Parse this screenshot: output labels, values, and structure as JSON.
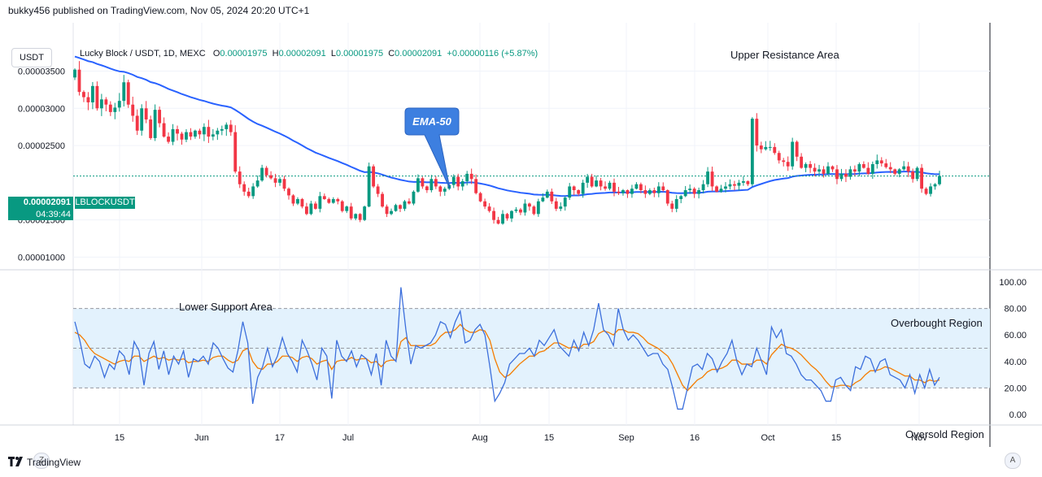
{
  "header": {
    "published_text": "bukky456 published on TradingView.com, Nov 05, 2024 20:20 UTC+1"
  },
  "toolbar": {
    "currency": "USDT",
    "scale_left_btn": "Z",
    "scale_right_btn": "A"
  },
  "legend": {
    "symbol": "Lucky Block / USDT, 1D, MEXC",
    "o_label": "O",
    "o_value": "0.00001975",
    "h_label": "H",
    "h_value": "0.00002091",
    "l_label": "L",
    "l_value": "0.00001975",
    "c_label": "C",
    "c_value": "0.00002091",
    "change": "+0.00000116 (+5.87%)"
  },
  "last_price": {
    "price": "0.00002091",
    "countdown": "04:39:44",
    "ticker": "LBLOCKUSDT"
  },
  "annotations": {
    "upper_resistance": "Upper Resistance Area",
    "lower_support": "Lower Support Area",
    "overbought": "Overbought Region",
    "oversold": "Oversold Region",
    "ema_callout": "EMA-50"
  },
  "footer": {
    "brand": "TradingView"
  },
  "colors": {
    "up": "#089981",
    "down": "#f23645",
    "ema": "#2962ff",
    "rsi": "#3c6fdc",
    "rsi_ma": "#f57c00",
    "band": "#e3f2fd",
    "callout": "#3d7fe0"
  },
  "chart_data": [
    {
      "type": "candlestick",
      "title": "Lucky Block / USDT, 1D, MEXC",
      "x_ticks": [
        "15",
        "Jun",
        "17",
        "Jul",
        "Aug",
        "15",
        "Sep",
        "16",
        "Oct",
        "15",
        "Nov"
      ],
      "y_ticks": [
        "0.00003500",
        "0.00003000",
        "0.00002500",
        "0.00001500",
        "0.00001000"
      ],
      "ylim": [
        8.3e-06,
        4.15e-05
      ],
      "ema_label": "EMA-50",
      "close": [
        3.52e-05,
        3.22e-05,
        3.15e-05,
        3.08e-05,
        3.3e-05,
        3e-05,
        3.12e-05,
        3.05e-05,
        2.95e-05,
        3.01e-05,
        3.1e-05,
        3.35e-05,
        3.05e-05,
        2.9e-05,
        2.7e-05,
        3e-05,
        2.85e-05,
        2.6e-05,
        2.98e-05,
        2.8e-05,
        2.62e-05,
        2.55e-05,
        2.72e-05,
        2.66e-05,
        2.58e-05,
        2.68e-05,
        2.62e-05,
        2.7e-05,
        2.65e-05,
        2.75e-05,
        2.62e-05,
        2.65e-05,
        2.7e-05,
        2.72e-05,
        2.78e-05,
        2.68e-05,
        2.15e-05,
        1.98e-05,
        1.88e-05,
        1.82e-05,
        1.95e-05,
        2.03e-05,
        2.2e-05,
        2.1e-05,
        2.06e-05,
        2e-05,
        2.05e-05,
        1.92e-05,
        1.83e-05,
        1.72e-05,
        1.78e-05,
        1.68e-05,
        1.58e-05,
        1.72e-05,
        1.65e-05,
        1.82e-05,
        1.78e-05,
        1.73e-05,
        1.78e-05,
        1.75e-05,
        1.62e-05,
        1.68e-05,
        1.52e-05,
        1.58e-05,
        1.5e-05,
        1.68e-05,
        2.22e-05,
        1.95e-05,
        1.85e-05,
        1.68e-05,
        1.58e-05,
        1.62e-05,
        1.7e-05,
        1.65e-05,
        1.75e-05,
        1.72e-05,
        1.88e-05,
        2.06e-05,
        1.95e-05,
        1.9e-05,
        2.05e-05,
        1.95e-05,
        1.88e-05,
        1.92e-05,
        1.97e-05,
        2.08e-05,
        1.95e-05,
        2.02e-05,
        2.12e-05,
        2.05e-05,
        1.86e-05,
        1.75e-05,
        1.68e-05,
        1.62e-05,
        1.5e-05,
        1.45e-05,
        1.58e-05,
        1.52e-05,
        1.62e-05,
        1.64e-05,
        1.6e-05,
        1.72e-05,
        1.68e-05,
        1.58e-05,
        1.75e-05,
        1.8e-05,
        1.88e-05,
        1.75e-05,
        1.65e-05,
        1.68e-05,
        1.8e-05,
        1.95e-05,
        1.9e-05,
        1.85e-05,
        2e-05,
        2.08e-05,
        1.95e-05,
        2.03e-05,
        1.95e-05,
        1.92e-05,
        2e-05,
        1.88e-05,
        1.86e-05,
        1.9e-05,
        1.85e-05,
        1.92e-05,
        1.98e-05,
        1.9e-05,
        1.85e-05,
        1.9e-05,
        1.86e-05,
        1.95e-05,
        1.9e-05,
        1.72e-05,
        1.65e-05,
        1.78e-05,
        1.82e-05,
        1.9e-05,
        1.92e-05,
        1.85e-05,
        1.9e-05,
        1.98e-05,
        2.15e-05,
        1.95e-05,
        1.88e-05,
        1.92e-05,
        1.95e-05,
        1.98e-05,
        1.96e-05,
        2e-05,
        2.02e-05,
        1.98e-05,
        2.86e-05,
        2.5e-05,
        2.45e-05,
        2.48e-05,
        2.48e-05,
        2.4e-05,
        2.3e-05,
        2.28e-05,
        2.22e-05,
        2.55e-05,
        2.35e-05,
        2.2e-05,
        2.25e-05,
        2.2e-05,
        2.15e-05,
        2.18e-05,
        2.12e-05,
        2.22e-05,
        2.18e-05,
        2.05e-05,
        2.12e-05,
        2.08e-05,
        2.18e-05,
        2.15e-05,
        2.25e-05,
        2.2e-05,
        2.12e-05,
        2.25e-05,
        2.3e-05,
        2.26e-05,
        2.21e-05,
        2.18e-05,
        2.12e-05,
        2.18e-05,
        2.22e-05,
        2.15e-05,
        2.05e-05,
        2.2e-05,
        1.92e-05,
        1.85e-05,
        1.95e-05,
        1.98e-05,
        2.09e-05
      ]
    },
    {
      "type": "line",
      "title": "RSI",
      "y_ticks": [
        "100.00",
        "80.00",
        "60.00",
        "40.00",
        "20.00",
        "0.00"
      ],
      "ylim": [
        -8,
        108
      ],
      "band": [
        20,
        80
      ],
      "midline": 50,
      "series": [
        {
          "values": [
            70,
            56,
            38,
            35,
            44,
            40,
            28,
            38,
            34,
            48,
            44,
            30,
            55,
            48,
            22,
            46,
            55,
            34,
            48,
            30,
            44,
            38,
            48,
            28,
            42,
            40,
            44,
            38,
            54,
            50,
            42,
            35,
            32,
            48,
            70,
            54,
            8,
            28,
            36,
            50,
            36,
            44,
            58,
            46,
            40,
            32,
            56,
            48,
            38,
            26,
            50,
            44,
            12,
            56,
            44,
            40,
            48,
            36,
            45,
            42,
            30,
            46,
            22,
            56,
            44,
            40,
            96,
            64,
            38,
            52,
            50,
            52,
            54,
            60,
            70,
            68,
            58,
            70,
            78,
            54,
            56,
            64,
            68,
            60,
            36,
            10,
            16,
            24,
            38,
            42,
            46,
            46,
            50,
            44,
            56,
            52,
            58,
            64,
            52,
            48,
            44,
            56,
            48,
            62,
            52,
            64,
            84,
            64,
            60,
            52,
            80,
            64,
            56,
            60,
            56,
            50,
            44,
            46,
            46,
            38,
            34,
            20,
            4,
            4,
            20,
            36,
            38,
            34,
            46,
            42,
            32,
            40,
            46,
            56,
            40,
            30,
            38,
            36,
            50,
            40,
            30,
            66,
            58,
            64,
            46,
            44,
            38,
            30,
            26,
            26,
            22,
            18,
            10,
            10,
            26,
            28,
            22,
            18,
            36,
            34,
            44,
            42,
            32,
            40,
            42,
            30,
            28,
            26,
            20,
            30,
            16,
            30,
            20,
            34,
            22,
            28
          ]
        },
        {
          "values": [
            62,
            60,
            56,
            50,
            46,
            44,
            42,
            40,
            38,
            40,
            41,
            40,
            44,
            44,
            40,
            42,
            44,
            42,
            43,
            41,
            42,
            41,
            42,
            39,
            40,
            40,
            41,
            40,
            43,
            44,
            44,
            41,
            39,
            41,
            48,
            50,
            40,
            35,
            34,
            38,
            38,
            40,
            44,
            44,
            43,
            40,
            43,
            44,
            42,
            38,
            40,
            41,
            34,
            40,
            41,
            41,
            43,
            41,
            42,
            42,
            39,
            40,
            36,
            40,
            41,
            41,
            55,
            58,
            52,
            52,
            52,
            52,
            52,
            54,
            59,
            62,
            62,
            64,
            68,
            64,
            62,
            62,
            64,
            63,
            56,
            42,
            32,
            28,
            30,
            34,
            38,
            41,
            44,
            44,
            47,
            48,
            51,
            54,
            54,
            52,
            50,
            51,
            50,
            53,
            53,
            55,
            61,
            63,
            62,
            60,
            64,
            64,
            62,
            62,
            61,
            58,
            54,
            52,
            50,
            47,
            44,
            38,
            30,
            22,
            18,
            22,
            26,
            28,
            32,
            34,
            34,
            35,
            37,
            41,
            41,
            38,
            38,
            38,
            41,
            41,
            38,
            45,
            49,
            53,
            51,
            50,
            48,
            45,
            41,
            37,
            34,
            30,
            25,
            21,
            21,
            22,
            22,
            21,
            24,
            26,
            30,
            33,
            33,
            34,
            36,
            35,
            33,
            31,
            29,
            29,
            26,
            26,
            24,
            26,
            25,
            26
          ]
        }
      ]
    }
  ]
}
